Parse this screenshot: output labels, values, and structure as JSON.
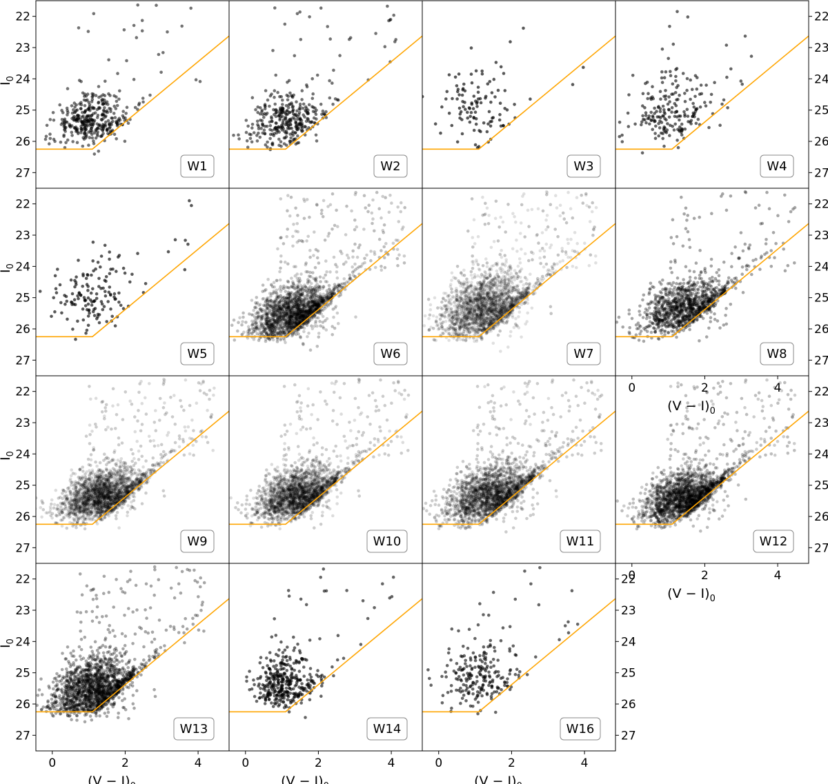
{
  "figure": {
    "marker_color": "#000000",
    "limit_line_color": "#ffa500",
    "panel_frame_color": "#000000"
  },
  "chart_data": {
    "type": "scatter",
    "layout": "4x4 grid of small-multiple color-magnitude diagrams with shared axes",
    "xlabel": "(V − I)",
    "xlabel_subscript": "0",
    "ylabel": "I",
    "ylabel_subscript": "0",
    "xlim": [
      -0.45,
      4.85
    ],
    "ylim": [
      27.5,
      21.5
    ],
    "y_axis_inverted": true,
    "xticks": [
      0,
      2,
      4
    ],
    "yticks": [
      22,
      23,
      24,
      25,
      26,
      27
    ],
    "completeness_limit_line": {
      "points": [
        [
          -0.45,
          26.25
        ],
        [
          1.1,
          26.25
        ],
        [
          4.85,
          22.63
        ]
      ]
    },
    "panels": [
      {
        "label": "W1",
        "row": 0,
        "col": 0,
        "n_points": 380,
        "alpha": 0.55,
        "density": "moderate",
        "center": [
          0.95,
          25.4
        ],
        "spread": [
          0.45,
          0.55
        ],
        "y_left_ticks": true,
        "y_right_ticks": false,
        "x_ticks": false
      },
      {
        "label": "W2",
        "row": 0,
        "col": 1,
        "n_points": 360,
        "alpha": 0.55,
        "density": "moderate",
        "center": [
          1.0,
          25.4
        ],
        "spread": [
          0.5,
          0.6
        ],
        "y_left_ticks": false,
        "y_right_ticks": false,
        "x_ticks": false
      },
      {
        "label": "W3",
        "row": 0,
        "col": 2,
        "n_points": 110,
        "alpha": 0.65,
        "density": "sparse",
        "center": [
          0.95,
          24.9
        ],
        "spread": [
          0.5,
          0.9
        ],
        "y_left_ticks": false,
        "y_right_ticks": false,
        "x_ticks": false
      },
      {
        "label": "W4",
        "row": 0,
        "col": 3,
        "n_points": 210,
        "alpha": 0.6,
        "density": "sparse",
        "center": [
          0.9,
          25.1
        ],
        "spread": [
          0.55,
          0.75
        ],
        "y_left_ticks": false,
        "y_right_ticks": true,
        "x_ticks": false
      },
      {
        "label": "W5",
        "row": 1,
        "col": 0,
        "n_points": 150,
        "alpha": 0.65,
        "density": "sparse",
        "center": [
          0.9,
          25.0
        ],
        "spread": [
          0.5,
          0.8
        ],
        "y_left_ticks": true,
        "y_right_ticks": false,
        "x_ticks": false
      },
      {
        "label": "W6",
        "row": 1,
        "col": 1,
        "n_points": 7000,
        "alpha": 0.07,
        "density": "dense",
        "center": [
          1.2,
          25.6
        ],
        "spread": [
          0.55,
          0.6
        ],
        "y_left_ticks": false,
        "y_right_ticks": false,
        "x_ticks": false
      },
      {
        "label": "W7",
        "row": 1,
        "col": 2,
        "n_points": 2800,
        "alpha": 0.12,
        "density": "dense",
        "center": [
          1.15,
          25.4
        ],
        "spread": [
          0.6,
          0.7
        ],
        "y_left_ticks": false,
        "y_right_ticks": false,
        "x_ticks": false
      },
      {
        "label": "W8",
        "row": 1,
        "col": 3,
        "n_points": 1100,
        "alpha": 0.35,
        "density": "moderate",
        "center": [
          1.3,
          25.4
        ],
        "spread": [
          0.6,
          0.55
        ],
        "y_left_ticks": false,
        "y_right_ticks": true,
        "x_ticks": true
      },
      {
        "label": "W9",
        "row": 2,
        "col": 0,
        "n_points": 5500,
        "alpha": 0.07,
        "density": "dense",
        "center": [
          1.25,
          25.4
        ],
        "spread": [
          0.55,
          0.55
        ],
        "y_left_ticks": true,
        "y_right_ticks": false,
        "x_ticks": false
      },
      {
        "label": "W10",
        "row": 2,
        "col": 1,
        "n_points": 5500,
        "alpha": 0.07,
        "density": "dense",
        "center": [
          1.3,
          25.4
        ],
        "spread": [
          0.55,
          0.55
        ],
        "y_left_ticks": false,
        "y_right_ticks": false,
        "x_ticks": false
      },
      {
        "label": "W11",
        "row": 2,
        "col": 2,
        "n_points": 6000,
        "alpha": 0.07,
        "density": "dense",
        "center": [
          1.3,
          25.4
        ],
        "spread": [
          0.6,
          0.6
        ],
        "y_left_ticks": false,
        "y_right_ticks": false,
        "x_ticks": false
      },
      {
        "label": "W12",
        "row": 2,
        "col": 3,
        "n_points": 7500,
        "alpha": 0.07,
        "density": "dense",
        "center": [
          1.3,
          25.5
        ],
        "spread": [
          0.55,
          0.55
        ],
        "y_left_ticks": false,
        "y_right_ticks": true,
        "x_ticks": true
      },
      {
        "label": "W13",
        "row": 3,
        "col": 0,
        "n_points": 1600,
        "alpha": 0.35,
        "density": "moderate",
        "center": [
          1.0,
          25.6
        ],
        "spread": [
          0.55,
          0.7
        ],
        "y_left_ticks": true,
        "y_right_ticks": false,
        "x_ticks": true
      },
      {
        "label": "W14",
        "row": 3,
        "col": 1,
        "n_points": 380,
        "alpha": 0.6,
        "density": "moderate",
        "center": [
          0.95,
          25.4
        ],
        "spread": [
          0.4,
          0.6
        ],
        "y_left_ticks": false,
        "y_right_ticks": false,
        "x_ticks": true
      },
      {
        "label": "W16",
        "row": 3,
        "col": 2,
        "n_points": 230,
        "alpha": 0.6,
        "density": "sparse",
        "center": [
          0.95,
          25.1
        ],
        "spread": [
          0.45,
          0.8
        ],
        "y_left_ticks": false,
        "y_right_ticks": true,
        "x_ticks": true
      }
    ]
  }
}
